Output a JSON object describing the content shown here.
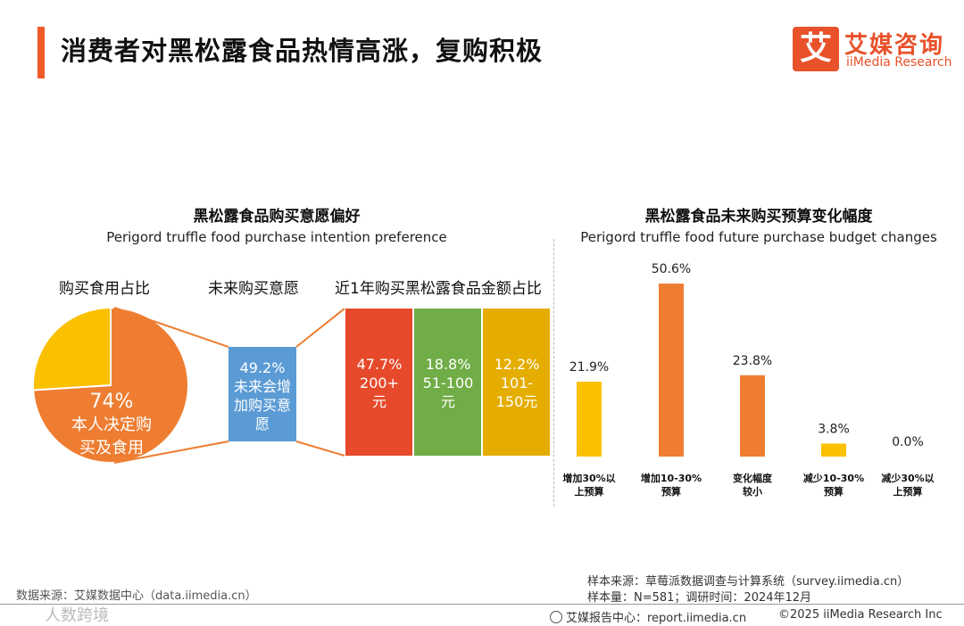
{
  "header": {
    "title": "消费者对黑松露食品热情高涨，复购积极",
    "logo_mark": "艾",
    "logo_cn": "艾媒咨询",
    "logo_en": "iiMedia Research"
  },
  "left_section": {
    "title": "黑松露食品购买意愿偏好",
    "subtitle": "Perigord truffle food purchase intention preference",
    "pie_label": "购买食用占比",
    "intent_label": "未来购买意愿",
    "amount_label": "近1年购买黑松露食品金额占比"
  },
  "right_section": {
    "title": "黑松露食品未来购买预算变化幅度",
    "subtitle": "Perigord truffle food future purchase budget changes"
  },
  "chart_data": [
    {
      "type": "pie",
      "slices": [
        {
          "name": "本人决定购买及食用",
          "value": 74,
          "label": "74%",
          "color": "#ee7d31"
        },
        {
          "name": "other",
          "value": 26,
          "color": "#fbc000"
        }
      ],
      "center_label": [
        "本人决定购",
        "买及食用"
      ]
    },
    {
      "type": "table",
      "intent": {
        "value": "49.2%",
        "lines": [
          "未来会增",
          "加购买意",
          "愿"
        ],
        "color": "#5b9bd5"
      },
      "amount_boxes": [
        {
          "value": "47.7%",
          "lines": [
            "200+",
            "元"
          ],
          "color": "#e64a2b"
        },
        {
          "value": "18.8%",
          "lines": [
            "51-100",
            "元"
          ],
          "color": "#70ad47"
        },
        {
          "value": "12.2%",
          "lines": [
            "101-",
            "150元"
          ],
          "color": "#e5ad00"
        }
      ]
    },
    {
      "type": "bar",
      "categories": [
        [
          "增加30%以",
          "上预算"
        ],
        [
          "增加10-30%",
          "预算"
        ],
        [
          "变化幅度",
          "较小"
        ],
        [
          "减少10-30%",
          "预算"
        ],
        [
          "减少30%以",
          "上预算"
        ]
      ],
      "values": [
        21.9,
        50.6,
        23.8,
        3.8,
        0.0
      ],
      "labels": [
        "21.9%",
        "50.6%",
        "23.8%",
        "3.8%",
        "0.0%"
      ],
      "colors": [
        "#fbc000",
        "#ee7d31",
        "#ee7d31",
        "#fbc000",
        "#fbc000"
      ],
      "ylim": [
        0,
        60
      ]
    }
  ],
  "footer": {
    "left_source": "数据来源：艾媒数据中心（data.iimedia.cn）",
    "sample_source": "样本来源：草莓派数据调查与计算系统（survey.iimedia.cn）",
    "sample_size": "样本量：N=581；调研时间：2024年12月",
    "report_center": "艾媒报告中心：report.iimedia.cn",
    "copyright": "©2025  iiMedia Research  Inc",
    "watermark": "人数跨境"
  }
}
